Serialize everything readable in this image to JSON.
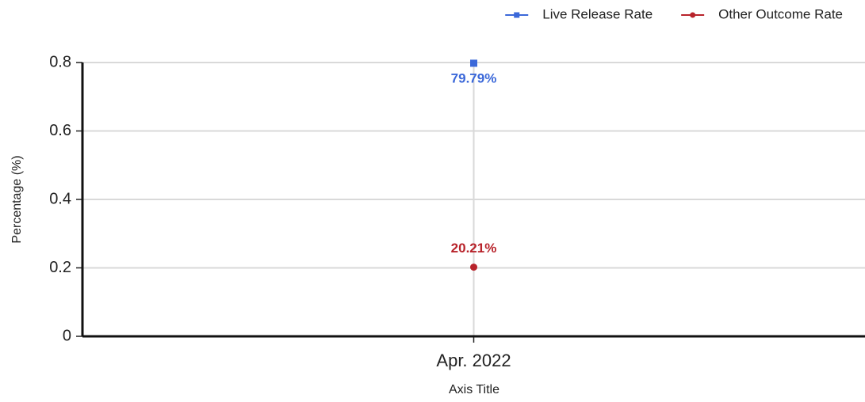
{
  "chart_data": {
    "type": "line",
    "categories": [
      "Apr. 2022"
    ],
    "series": [
      {
        "name": "Live Release Rate",
        "color": "#3b68d9",
        "marker": "square",
        "values": [
          0.7979
        ],
        "value_labels": [
          "79.79%"
        ]
      },
      {
        "name": "Other Outcome Rate",
        "color": "#b8232b",
        "marker": "circle",
        "values": [
          0.2021
        ],
        "value_labels": [
          "20.21%"
        ]
      }
    ],
    "ylim": [
      0,
      0.8
    ],
    "yticks": [
      0,
      0.2,
      0.4,
      0.6,
      0.8
    ],
    "y_label": "Percentage (%)",
    "x_label": "Axis Title",
    "grid": true,
    "legend": "top-right"
  }
}
